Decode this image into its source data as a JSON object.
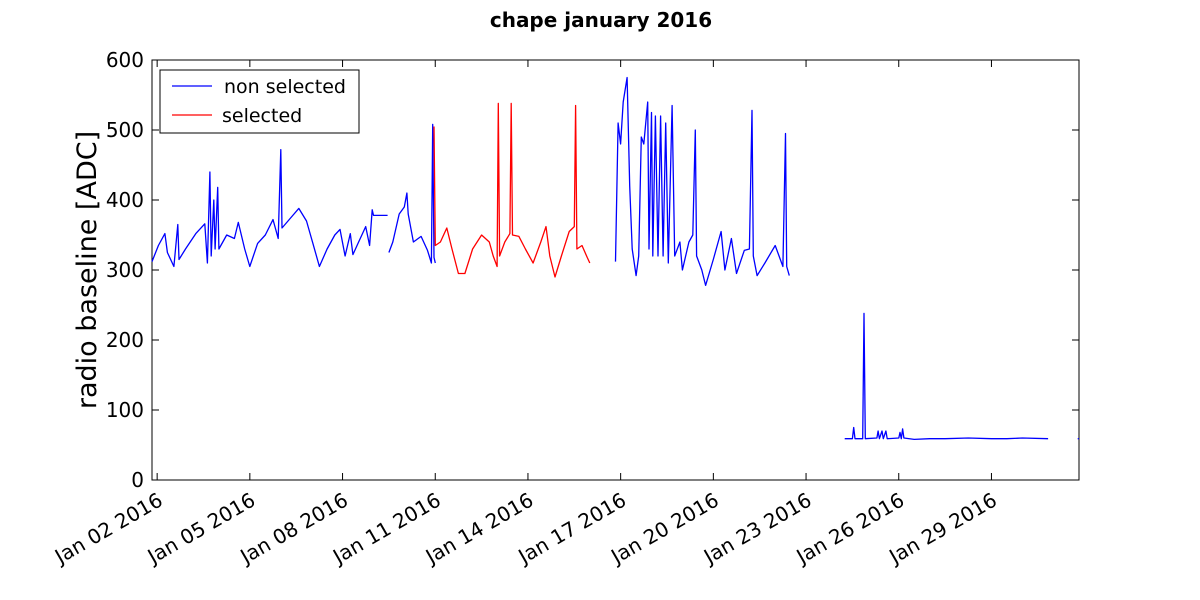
{
  "chart_data": {
    "type": "line",
    "title": "chape january 2016",
    "xlabel": "",
    "ylabel": "radio baseline [ADC]",
    "x_unit": "date",
    "xlim": [
      "2016-01-01T20:00",
      "2016-01-31T20:00"
    ],
    "ylim": [
      0,
      600
    ],
    "yticks": [
      0,
      100,
      200,
      300,
      400,
      500,
      600
    ],
    "xticks": [
      {
        "value": "2016-01-02",
        "label": "Jan 02 2016"
      },
      {
        "value": "2016-01-05",
        "label": "Jan 05 2016"
      },
      {
        "value": "2016-01-08",
        "label": "Jan 08 2016"
      },
      {
        "value": "2016-01-11",
        "label": "Jan 11 2016"
      },
      {
        "value": "2016-01-14",
        "label": "Jan 14 2016"
      },
      {
        "value": "2016-01-17",
        "label": "Jan 17 2016"
      },
      {
        "value": "2016-01-20",
        "label": "Jan 20 2016"
      },
      {
        "value": "2016-01-23",
        "label": "Jan 23 2016"
      },
      {
        "value": "2016-01-26",
        "label": "Jan 26 2016"
      },
      {
        "value": "2016-01-29",
        "label": "Jan 29 2016"
      }
    ],
    "grid": false,
    "legend_position": "top-left",
    "series": [
      {
        "name": "non selected",
        "color": "#0000ff",
        "segments": [
          [
            [
              "2016-01-01T20:00",
              312
            ],
            [
              "2016-01-02T01:00",
              335
            ],
            [
              "2016-01-02T06:00",
              352
            ],
            [
              "2016-01-02T08:00",
              325
            ],
            [
              "2016-01-02T13:00",
              305
            ],
            [
              "2016-01-02T16:00",
              365
            ],
            [
              "2016-01-02T17:00",
              315
            ],
            [
              "2016-01-02T22:00",
              330
            ],
            [
              "2016-01-03T06:00",
              352
            ],
            [
              "2016-01-03T13:00",
              366
            ],
            [
              "2016-01-03T15:00",
              310
            ],
            [
              "2016-01-03T17:00",
              440
            ],
            [
              "2016-01-03T18:00",
              320
            ],
            [
              "2016-01-03T20:00",
              400
            ],
            [
              "2016-01-03T21:00",
              330
            ],
            [
              "2016-01-03T23:00",
              418
            ],
            [
              "2016-01-04T00:00",
              330
            ],
            [
              "2016-01-04T06:00",
              350
            ],
            [
              "2016-01-04T12:00",
              345
            ],
            [
              "2016-01-04T15:00",
              368
            ],
            [
              "2016-01-04T20:00",
              330
            ],
            [
              "2016-01-05T00:00",
              305
            ],
            [
              "2016-01-05T06:00",
              338
            ],
            [
              "2016-01-05T12:00",
              350
            ],
            [
              "2016-01-05T18:00",
              372
            ],
            [
              "2016-01-05T22:00",
              345
            ],
            [
              "2016-01-06T00:00",
              472
            ],
            [
              "2016-01-06T01:00",
              360
            ],
            [
              "2016-01-06T08:00",
              375
            ],
            [
              "2016-01-06T14:00",
              388
            ],
            [
              "2016-01-06T20:00",
              370
            ],
            [
              "2016-01-07T01:00",
              338
            ],
            [
              "2016-01-07T06:00",
              305
            ],
            [
              "2016-01-07T12:00",
              330
            ],
            [
              "2016-01-07T18:00",
              350
            ],
            [
              "2016-01-07T22:00",
              358
            ],
            [
              "2016-01-08T02:00",
              320
            ],
            [
              "2016-01-08T06:00",
              352
            ],
            [
              "2016-01-08T08:00",
              322
            ],
            [
              "2016-01-08T12:00",
              338
            ],
            [
              "2016-01-08T18:00",
              362
            ],
            [
              "2016-01-08T21:00",
              335
            ],
            [
              "2016-01-08T23:00",
              386
            ],
            [
              "2016-01-09T00:00",
              378
            ],
            [
              "2016-01-09T11:00",
              378
            ]
          ],
          [
            [
              "2016-01-09T12:00",
              325
            ],
            [
              "2016-01-09T15:00",
              340
            ],
            [
              "2016-01-09T20:00",
              380
            ],
            [
              "2016-01-10T00:00",
              390
            ],
            [
              "2016-01-10T02:00",
              410
            ],
            [
              "2016-01-10T03:00",
              380
            ],
            [
              "2016-01-10T07:00",
              340
            ],
            [
              "2016-01-10T13:00",
              348
            ],
            [
              "2016-01-10T18:00",
              328
            ],
            [
              "2016-01-10T21:00",
              310
            ],
            [
              "2016-01-10T22:00",
              508
            ],
            [
              "2016-01-10T23:00",
              318
            ],
            [
              "2016-01-11T00:00",
              310
            ]
          ],
          [
            [
              "2016-01-16T20:00",
              312
            ],
            [
              "2016-01-16T22:00",
              510
            ],
            [
              "2016-01-17T00:00",
              480
            ],
            [
              "2016-01-17T02:00",
              540
            ],
            [
              "2016-01-17T05:00",
              575
            ],
            [
              "2016-01-17T07:00",
              420
            ],
            [
              "2016-01-17T09:00",
              330
            ],
            [
              "2016-01-17T12:00",
              292
            ],
            [
              "2016-01-17T14:00",
              320
            ],
            [
              "2016-01-17T16:00",
              490
            ],
            [
              "2016-01-17T18:00",
              480
            ],
            [
              "2016-01-17T21:00",
              540
            ],
            [
              "2016-01-17T22:00",
              330
            ],
            [
              "2016-01-18T00:00",
              525
            ],
            [
              "2016-01-18T01:00",
              320
            ],
            [
              "2016-01-18T03:00",
              520
            ],
            [
              "2016-01-18T05:00",
              320
            ],
            [
              "2016-01-18T07:00",
              520
            ],
            [
              "2016-01-18T09:00",
              320
            ],
            [
              "2016-01-18T11:00",
              510
            ],
            [
              "2016-01-18T13:00",
              310
            ],
            [
              "2016-01-18T16:00",
              535
            ],
            [
              "2016-01-18T18:00",
              320
            ],
            [
              "2016-01-18T22:00",
              340
            ],
            [
              "2016-01-19T00:00",
              300
            ],
            [
              "2016-01-19T05:00",
              340
            ],
            [
              "2016-01-19T08:00",
              350
            ],
            [
              "2016-01-19T10:00",
              500
            ],
            [
              "2016-01-19T11:00",
              320
            ],
            [
              "2016-01-19T15:00",
              300
            ],
            [
              "2016-01-19T18:00",
              278
            ],
            [
              "2016-01-20T00:00",
              315
            ],
            [
              "2016-01-20T06:00",
              355
            ],
            [
              "2016-01-20T09:00",
              300
            ],
            [
              "2016-01-20T14:00",
              345
            ],
            [
              "2016-01-20T18:00",
              295
            ],
            [
              "2016-01-21T00:00",
              328
            ],
            [
              "2016-01-21T04:00",
              330
            ],
            [
              "2016-01-21T06:00",
              528
            ],
            [
              "2016-01-21T07:00",
              320
            ],
            [
              "2016-01-21T10:00",
              292
            ],
            [
              "2016-01-21T16:00",
              310
            ],
            [
              "2016-01-22T00:00",
              335
            ],
            [
              "2016-01-22T06:00",
              305
            ],
            [
              "2016-01-22T08:00",
              495
            ],
            [
              "2016-01-22T09:00",
              305
            ],
            [
              "2016-01-22T11:00",
              292
            ]
          ],
          [
            [
              "2016-01-24T06:00",
              59
            ],
            [
              "2016-01-24T12:00",
              59
            ],
            [
              "2016-01-24T13:00",
              75
            ],
            [
              "2016-01-24T14:00",
              59
            ],
            [
              "2016-01-24T20:00",
              59
            ],
            [
              "2016-01-24T21:00",
              238
            ],
            [
              "2016-01-24T22:00",
              59
            ],
            [
              "2016-01-25T07:00",
              60
            ],
            [
              "2016-01-25T08:00",
              70
            ],
            [
              "2016-01-25T09:00",
              59
            ],
            [
              "2016-01-25T11:00",
              70
            ],
            [
              "2016-01-25T12:00",
              59
            ],
            [
              "2016-01-25T14:00",
              70
            ],
            [
              "2016-01-25T15:00",
              59
            ],
            [
              "2016-01-26T00:00",
              60
            ],
            [
              "2016-01-26T01:00",
              68
            ],
            [
              "2016-01-26T02:00",
              59
            ],
            [
              "2016-01-26T03:00",
              73
            ],
            [
              "2016-01-26T04:00",
              60
            ],
            [
              "2016-01-26T12:00",
              58
            ],
            [
              "2016-01-27T00:00",
              59
            ],
            [
              "2016-01-27T12:00",
              59
            ],
            [
              "2016-01-28T06:00",
              60
            ],
            [
              "2016-01-29T00:00",
              59
            ],
            [
              "2016-01-29T12:00",
              59
            ],
            [
              "2016-01-30T00:00",
              60
            ],
            [
              "2016-01-30T20:00",
              59
            ]
          ],
          [
            [
              "2016-01-31T19:00",
              59
            ],
            [
              "2016-01-31T20:00",
              59
            ]
          ]
        ]
      },
      {
        "name": "selected",
        "color": "#ff0000",
        "segments": [
          [
            [
              "2016-01-10T23:00",
              505
            ],
            [
              "2016-01-11T00:00",
              335
            ],
            [
              "2016-01-11T04:00",
              340
            ],
            [
              "2016-01-11T09:00",
              360
            ],
            [
              "2016-01-11T13:00",
              330
            ],
            [
              "2016-01-11T18:00",
              295
            ],
            [
              "2016-01-11T23:00",
              295
            ],
            [
              "2016-01-12T05:00",
              330
            ],
            [
              "2016-01-12T12:00",
              350
            ],
            [
              "2016-01-12T18:00",
              340
            ],
            [
              "2016-01-12T21:00",
              320
            ],
            [
              "2016-01-13T00:00",
              305
            ],
            [
              "2016-01-13T01:00",
              538
            ],
            [
              "2016-01-13T02:00",
              320
            ],
            [
              "2016-01-13T06:00",
              340
            ],
            [
              "2016-01-13T10:00",
              352
            ],
            [
              "2016-01-13T11:00",
              538
            ],
            [
              "2016-01-13T12:00",
              350
            ],
            [
              "2016-01-13T17:00",
              348
            ],
            [
              "2016-01-13T22:00",
              330
            ],
            [
              "2016-01-14T04:00",
              310
            ],
            [
              "2016-01-14T10:00",
              340
            ],
            [
              "2016-01-14T14:00",
              362
            ],
            [
              "2016-01-14T17:00",
              320
            ],
            [
              "2016-01-14T21:00",
              290
            ],
            [
              "2016-01-15T02:00",
              320
            ],
            [
              "2016-01-15T08:00",
              355
            ],
            [
              "2016-01-15T12:00",
              362
            ],
            [
              "2016-01-15T13:00",
              535
            ],
            [
              "2016-01-15T14:00",
              330
            ],
            [
              "2016-01-15T18:00",
              335
            ],
            [
              "2016-01-15T22:00",
              318
            ],
            [
              "2016-01-16T00:00",
              310
            ]
          ]
        ]
      }
    ]
  }
}
